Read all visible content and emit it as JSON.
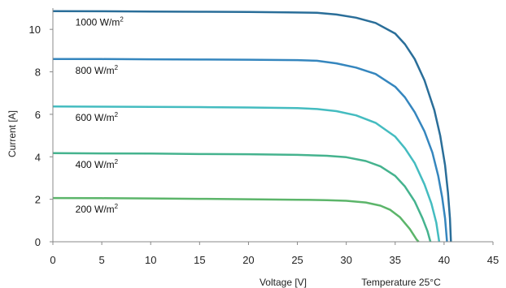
{
  "chart_data": {
    "type": "line",
    "xlabel": "Voltage [V]",
    "ylabel": "Current [A]",
    "annotation": "Temperature 25°C",
    "xlim": [
      0,
      45
    ],
    "ylim": [
      0,
      11
    ],
    "xticks": [
      "0",
      "5",
      "10",
      "15",
      "20",
      "25",
      "30",
      "35",
      "40",
      "45"
    ],
    "yticks": [
      "0",
      "2",
      "4",
      "6",
      "8",
      "10"
    ],
    "grid": false,
    "series": [
      {
        "name": "1000 W/m²",
        "label_text": "1000 W/m",
        "label_sup": "2",
        "color": "#2a6e99",
        "points": [
          [
            0,
            10.86
          ],
          [
            5,
            10.85
          ],
          [
            10,
            10.84
          ],
          [
            15,
            10.83
          ],
          [
            20,
            10.82
          ],
          [
            24,
            10.8
          ],
          [
            27,
            10.78
          ],
          [
            29,
            10.7
          ],
          [
            31,
            10.55
          ],
          [
            33,
            10.3
          ],
          [
            35,
            9.8
          ],
          [
            36,
            9.3
          ],
          [
            37,
            8.6
          ],
          [
            38,
            7.6
          ],
          [
            39,
            6.2
          ],
          [
            39.6,
            5.0
          ],
          [
            40.1,
            3.6
          ],
          [
            40.4,
            2.3
          ],
          [
            40.6,
            1.1
          ],
          [
            40.7,
            0
          ]
        ]
      },
      {
        "name": "800 W/m²",
        "label_text": "800 W/m",
        "label_sup": "2",
        "color": "#3586be",
        "points": [
          [
            0,
            8.6
          ],
          [
            5,
            8.6
          ],
          [
            10,
            8.59
          ],
          [
            15,
            8.58
          ],
          [
            20,
            8.57
          ],
          [
            25,
            8.55
          ],
          [
            27,
            8.52
          ],
          [
            29,
            8.4
          ],
          [
            31,
            8.2
          ],
          [
            33,
            7.9
          ],
          [
            35,
            7.3
          ],
          [
            36,
            6.8
          ],
          [
            37,
            6.1
          ],
          [
            38,
            5.2
          ],
          [
            38.8,
            4.2
          ],
          [
            39.4,
            3.1
          ],
          [
            39.8,
            2.1
          ],
          [
            40.1,
            1.1
          ],
          [
            40.3,
            0
          ]
        ]
      },
      {
        "name": "600 W/m²",
        "label_text": "600 W/m",
        "label_sup": "2",
        "color": "#44bcc0",
        "points": [
          [
            0,
            6.37
          ],
          [
            5,
            6.36
          ],
          [
            10,
            6.35
          ],
          [
            15,
            6.34
          ],
          [
            20,
            6.32
          ],
          [
            25,
            6.29
          ],
          [
            27,
            6.25
          ],
          [
            29,
            6.15
          ],
          [
            31,
            5.95
          ],
          [
            33,
            5.6
          ],
          [
            35,
            4.95
          ],
          [
            36,
            4.4
          ],
          [
            37,
            3.7
          ],
          [
            38,
            2.7
          ],
          [
            38.7,
            1.8
          ],
          [
            39.2,
            0.9
          ],
          [
            39.5,
            0
          ]
        ]
      },
      {
        "name": "400 W/m²",
        "label_text": "400 W/m",
        "label_sup": "2",
        "color": "#45b38e",
        "points": [
          [
            0,
            4.17
          ],
          [
            5,
            4.16
          ],
          [
            10,
            4.15
          ],
          [
            15,
            4.13
          ],
          [
            20,
            4.12
          ],
          [
            25,
            4.09
          ],
          [
            28,
            4.05
          ],
          [
            30,
            3.98
          ],
          [
            32,
            3.8
          ],
          [
            33.5,
            3.55
          ],
          [
            35,
            3.1
          ],
          [
            36,
            2.6
          ],
          [
            37,
            1.9
          ],
          [
            37.8,
            1.1
          ],
          [
            38.3,
            0.5
          ],
          [
            38.6,
            0
          ]
        ]
      },
      {
        "name": "200 W/m²",
        "label_text": "200 W/m",
        "label_sup": "2",
        "color": "#5cb56a",
        "points": [
          [
            0,
            2.06
          ],
          [
            5,
            2.05
          ],
          [
            10,
            2.04
          ],
          [
            15,
            2.02
          ],
          [
            20,
            2.0
          ],
          [
            25,
            1.98
          ],
          [
            28,
            1.96
          ],
          [
            30,
            1.93
          ],
          [
            32,
            1.85
          ],
          [
            33.5,
            1.7
          ],
          [
            34.5,
            1.5
          ],
          [
            35.5,
            1.15
          ],
          [
            36.5,
            0.6
          ],
          [
            37.2,
            0.1
          ],
          [
            37.4,
            0
          ]
        ]
      }
    ]
  }
}
